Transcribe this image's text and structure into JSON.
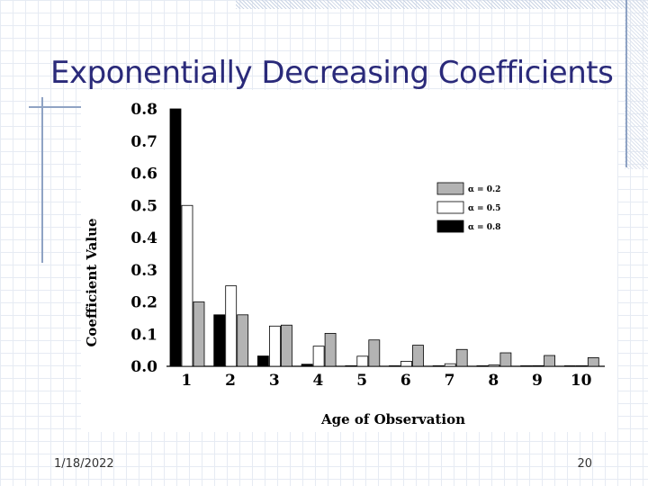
{
  "slide": {
    "title": "Exponentially Decreasing Coefficients",
    "date": "1/18/2022",
    "page_number": "20"
  },
  "colors": {
    "title": "#2a2a7a",
    "alpha_0_2": "#b3b3b3",
    "alpha_0_5": "#ffffff",
    "alpha_0_8": "#000000"
  },
  "chart_data": {
    "type": "bar",
    "title": "",
    "xlabel": "Age of Observation",
    "ylabel": "Coefficient Value",
    "categories": [
      "1",
      "2",
      "3",
      "4",
      "5",
      "6",
      "7",
      "8",
      "9",
      "10"
    ],
    "ylim": [
      0,
      0.8
    ],
    "yticks": [
      "0.0",
      "0.1",
      "0.2",
      "0.3",
      "0.4",
      "0.5",
      "0.6",
      "0.7",
      "0.8"
    ],
    "grid": false,
    "legend_position": "top-right",
    "series": [
      {
        "name": "α = 0.8",
        "color": "#000000",
        "values": [
          0.8,
          0.16,
          0.032,
          0.0064,
          0.0013,
          0.0003,
          0.0001,
          0.0,
          0.0,
          0.0
        ]
      },
      {
        "name": "α = 0.5",
        "color": "#ffffff",
        "values": [
          0.5,
          0.25,
          0.125,
          0.0625,
          0.0313,
          0.0156,
          0.0078,
          0.0039,
          0.002,
          0.001
        ]
      },
      {
        "name": "α = 0.2",
        "color": "#b3b3b3",
        "values": [
          0.2,
          0.16,
          0.128,
          0.1024,
          0.0819,
          0.0655,
          0.0524,
          0.0419,
          0.0336,
          0.0268
        ]
      }
    ],
    "legend_order": [
      "α = 0.2",
      "α = 0.5",
      "α = 0.8"
    ]
  }
}
